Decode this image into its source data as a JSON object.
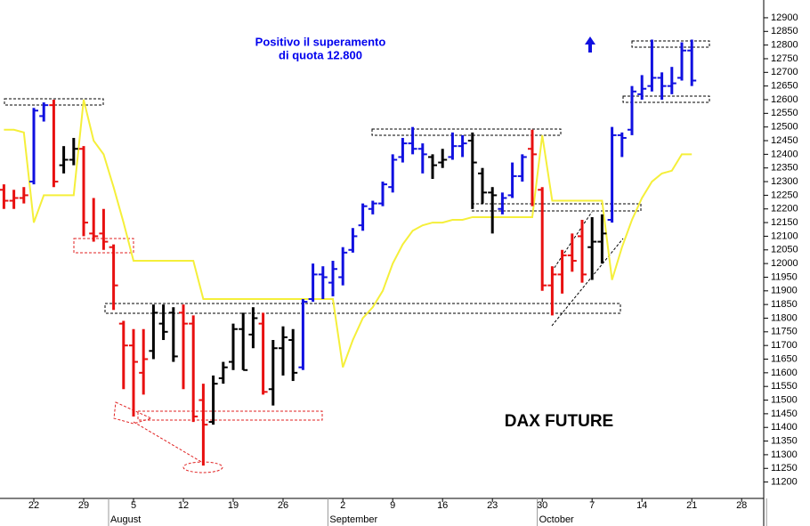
{
  "chart_data": {
    "type": "ohlc",
    "annotation_lines": [
      "Positivo il superamento",
      "di quota 12.800"
    ],
    "label": "DAX FUTURE",
    "categories": [
      null,
      null,
      null,
      "22",
      null,
      null,
      null,
      null,
      "29",
      null,
      null,
      null,
      null,
      "5",
      null,
      null,
      null,
      null,
      "12",
      null,
      null,
      null,
      null,
      "19",
      null,
      null,
      null,
      null,
      "26",
      null,
      null,
      null,
      null,
      null,
      "2",
      null,
      null,
      null,
      null,
      "9",
      null,
      null,
      null,
      null,
      "16",
      null,
      null,
      null,
      null,
      "23",
      null,
      null,
      null,
      null,
      "30",
      null,
      null,
      null,
      null,
      "7",
      null,
      null,
      null,
      null,
      "14",
      null,
      null,
      null,
      null,
      "21",
      null,
      null,
      null,
      null,
      "28",
      null,
      null,
      null
    ],
    "months": [
      null,
      null,
      null,
      null,
      null,
      null,
      null,
      null,
      null,
      null,
      null,
      "August",
      null,
      null,
      null,
      null,
      null,
      null,
      null,
      null,
      null,
      null,
      null,
      null,
      null,
      null,
      null,
      null,
      null,
      null,
      null,
      null,
      null,
      "September",
      null,
      null,
      null,
      null,
      null,
      null,
      null,
      null,
      null,
      null,
      null,
      null,
      null,
      null,
      null,
      null,
      null,
      null,
      null,
      null,
      "October",
      null,
      null,
      null,
      null,
      null,
      null,
      null,
      null,
      null,
      null,
      null,
      null,
      null,
      null,
      null,
      null,
      null,
      null,
      null,
      null,
      null,
      null
    ],
    "open": [
      12270,
      12230,
      12240,
      12300,
      12540,
      12580,
      12360,
      12380,
      12420,
      12110,
      12110,
      12060,
      11780,
      11700,
      11600,
      11680,
      11780,
      11820,
      11820,
      11780,
      11500,
      11420,
      11580,
      11640,
      11760,
      11740,
      11780,
      11540,
      11690,
      11720,
      11620,
      11870,
      11960,
      11930,
      11950,
      12050,
      12140,
      12200,
      12220,
      12280,
      12390,
      12440,
      12420,
      12390,
      12370,
      12390,
      12430,
      12450,
      12330,
      12260,
      12200,
      12250,
      12320,
      12420,
      12270,
      11920,
      11960,
      12030,
      12100,
      12060,
      12080,
      12160,
      12470,
      12490,
      12620,
      12650,
      12680,
      12650,
      12680,
      12780,
      null,
      null,
      null,
      null,
      null,
      null,
      null
    ],
    "high": [
      12290,
      12270,
      12280,
      12570,
      12590,
      12600,
      12430,
      12460,
      12430,
      12240,
      12200,
      12070,
      11790,
      11760,
      11760,
      11850,
      11850,
      11840,
      11850,
      11810,
      11560,
      11590,
      11640,
      11780,
      11820,
      11840,
      11820,
      11720,
      11770,
      11760,
      11870,
      12000,
      11990,
      12010,
      12060,
      12130,
      12220,
      12230,
      12300,
      12400,
      12460,
      12500,
      12440,
      12400,
      12420,
      12480,
      12470,
      12480,
      12350,
      12280,
      12260,
      12370,
      12400,
      12490,
      12280,
      11990,
      12050,
      12110,
      12160,
      12170,
      12180,
      12500,
      12480,
      12650,
      12690,
      12820,
      12700,
      12720,
      12810,
      12820,
      null,
      null,
      null,
      null,
      null,
      null,
      null
    ],
    "low": [
      12200,
      12200,
      12220,
      12290,
      12520,
      12280,
      12330,
      12360,
      12100,
      12080,
      12050,
      11830,
      11540,
      11440,
      11520,
      11650,
      11720,
      11640,
      11540,
      11420,
      11260,
      11410,
      11560,
      11610,
      11610,
      11690,
      11520,
      11480,
      11590,
      11570,
      11610,
      11860,
      11870,
      11880,
      11920,
      12040,
      12120,
      12180,
      12210,
      12260,
      12370,
      12400,
      12330,
      12310,
      12350,
      12380,
      12390,
      12200,
      12220,
      12110,
      12180,
      12240,
      12300,
      12210,
      11900,
      11810,
      11890,
      11970,
      11930,
      11940,
      12000,
      12150,
      12390,
      12470,
      12600,
      12630,
      12600,
      12620,
      12670,
      12650,
      null,
      null,
      null,
      null,
      null,
      null,
      null
    ],
    "close": [
      12230,
      12240,
      12250,
      12560,
      12580,
      12300,
      12380,
      12420,
      12150,
      12100,
      12080,
      11920,
      11700,
      11640,
      11650,
      11820,
      11750,
      11660,
      11780,
      11440,
      11410,
      11560,
      11620,
      11760,
      11610,
      11800,
      11530,
      11690,
      11730,
      11600,
      11860,
      11960,
      11950,
      11980,
      12040,
      12100,
      12210,
      12220,
      12290,
      12380,
      12440,
      12420,
      12400,
      12360,
      12380,
      12430,
      12440,
      12370,
      12260,
      12250,
      12240,
      12320,
      12390,
      12400,
      11920,
      11960,
      12030,
      12010,
      11960,
      12080,
      12110,
      12470,
      12460,
      12630,
      12640,
      12680,
      12650,
      12660,
      12780,
      12670,
      null,
      null,
      null,
      null,
      null,
      null,
      null
    ],
    "bar_colors": [
      "#e81010",
      "#e81010",
      "#e81010",
      "#1010e0",
      "#1010e0",
      "#e81010",
      "#000000",
      "#000000",
      "#e81010",
      "#e81010",
      "#e81010",
      "#e81010",
      "#e81010",
      "#e81010",
      "#e81010",
      "#000000",
      "#000000",
      "#000000",
      "#e81010",
      "#e81010",
      "#e81010",
      "#000000",
      "#000000",
      "#000000",
      "#000000",
      "#000000",
      "#e81010",
      "#000000",
      "#000000",
      "#000000",
      "#1010e0",
      "#1010e0",
      "#1010e0",
      "#1010e0",
      "#1010e0",
      "#1010e0",
      "#1010e0",
      "#1010e0",
      "#1010e0",
      "#1010e0",
      "#1010e0",
      "#1010e0",
      "#1010e0",
      "#000000",
      "#000000",
      "#1010e0",
      "#1010e0",
      "#000000",
      "#000000",
      "#000000",
      "#1010e0",
      "#1010e0",
      "#1010e0",
      "#e81010",
      "#e81010",
      "#e81010",
      "#e81010",
      "#e81010",
      "#e81010",
      "#000000",
      "#000000",
      "#1010e0",
      "#1010e0",
      "#1010e0",
      "#1010e0",
      "#1010e0",
      "#1010e0",
      "#1010e0",
      "#1010e0",
      "#1010e0",
      null,
      null,
      null,
      null,
      null,
      null,
      null
    ],
    "overlay": {
      "color": "#f5ef3a",
      "values": [
        12490,
        12490,
        12480,
        12150,
        12250,
        12250,
        12250,
        12250,
        12600,
        12450,
        12400,
        12280,
        12150,
        12010,
        12010,
        12010,
        12010,
        12010,
        12010,
        12010,
        11870,
        11870,
        11870,
        11870,
        11870,
        11870,
        11870,
        11870,
        11870,
        11870,
        11870,
        11870,
        11870,
        11870,
        11620,
        11720,
        11800,
        11840,
        11900,
        12000,
        12070,
        12120,
        12140,
        12150,
        12150,
        12160,
        12160,
        12170,
        12170,
        12170,
        12170,
        12170,
        12170,
        12170,
        12470,
        12230,
        12230,
        12230,
        12230,
        12230,
        12230,
        11940,
        12060,
        12160,
        12240,
        12300,
        12330,
        12340,
        12400,
        12400,
        null,
        null,
        null,
        null,
        null,
        null,
        null
      ]
    },
    "ylim": [
      11140,
      12965
    ],
    "yticks": [
      11200,
      11250,
      11300,
      11350,
      11400,
      11450,
      11500,
      11550,
      11600,
      11650,
      11700,
      11750,
      11800,
      11850,
      11900,
      11950,
      12000,
      12050,
      12100,
      12150,
      12200,
      12250,
      12300,
      12350,
      12400,
      12450,
      12500,
      12550,
      12600,
      12650,
      12700,
      12750,
      12800,
      12850,
      12900
    ]
  }
}
